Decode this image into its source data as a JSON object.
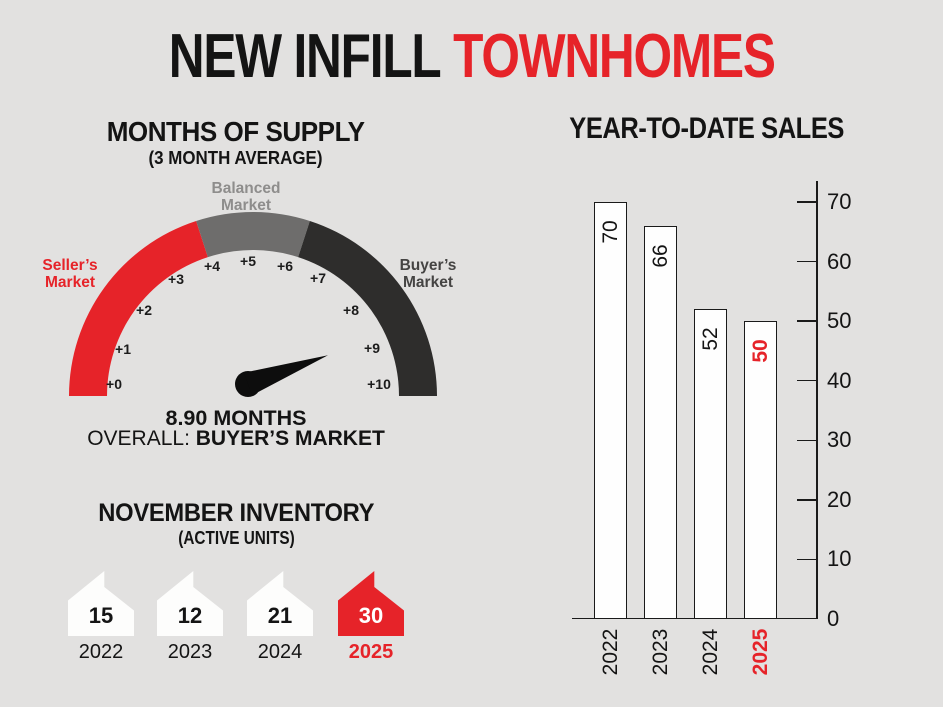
{
  "background": "#e2e1e0",
  "accent_red": "#e62329",
  "main_title": {
    "part_black": "NEW INFILL",
    "part_red": "TOWNHOMES"
  },
  "gauge_section": {
    "title": "MONTHS OF SUPPLY",
    "subtitle": "(3 MONTH AVERAGE)",
    "seller_label": "Seller’s Market",
    "balanced_label": "Balanced Market",
    "buyer_label": "Buyer’s Market",
    "value_text": "8.90 MONTHS",
    "overall_prefix": "OVERALL: ",
    "overall_value": "BUYER’S MARKET"
  },
  "sales_section": {
    "title": "YEAR-TO-DATE SALES"
  },
  "inventory_section": {
    "title": "NOVEMBER INVENTORY",
    "subtitle": "(ACTIVE UNITS)"
  },
  "chart_data": [
    {
      "type": "gauge",
      "title": "MONTHS OF SUPPLY (3 MONTH AVERAGE)",
      "value": 8.9,
      "value_label": "8.90 MONTHS",
      "overall": "BUYER’S MARKET",
      "range": [
        0,
        10
      ],
      "ticks": [
        "+0",
        "+1",
        "+2",
        "+3",
        "+4",
        "+5",
        "+6",
        "+7",
        "+8",
        "+9",
        "+10"
      ],
      "segments": [
        {
          "label": "Seller’s Market",
          "from": 0,
          "to": 4,
          "color": "#e62329"
        },
        {
          "label": "Balanced Market",
          "from": 4,
          "to": 6,
          "color": "#6e6d6c"
        },
        {
          "label": "Buyer’s Market",
          "from": 6,
          "to": 10,
          "color": "#2e2d2c"
        }
      ],
      "needle_color": "#0d0d0d"
    },
    {
      "type": "bar",
      "title": "YEAR-TO-DATE SALES",
      "categories": [
        "2022",
        "2023",
        "2024",
        "2025"
      ],
      "values": [
        70,
        66,
        52,
        50
      ],
      "ylim": [
        0,
        70
      ],
      "yticks": [
        0,
        10,
        20,
        30,
        40,
        50,
        60,
        70
      ],
      "axis_side": "right",
      "bar_fill": "#fefefe",
      "bar_border": "#1a1a1a",
      "label_colors": [
        "#141414",
        "#141414",
        "#141414",
        "#e62329"
      ],
      "category_colors": [
        "#141414",
        "#141414",
        "#141414",
        "#e62329"
      ]
    },
    {
      "type": "pictograph",
      "title": "NOVEMBER INVENTORY (ACTIVE UNITS)",
      "icon": "house",
      "categories": [
        "2022",
        "2023",
        "2024",
        "2025"
      ],
      "values": [
        15,
        12,
        21,
        30
      ],
      "icon_colors": [
        "#fdfdfc",
        "#fdfdfc",
        "#fdfdfc",
        "#e62329"
      ],
      "value_colors": [
        "#141414",
        "#141414",
        "#141414",
        "#ffffff"
      ],
      "category_colors": [
        "#141414",
        "#141414",
        "#141414",
        "#e62329"
      ]
    }
  ]
}
